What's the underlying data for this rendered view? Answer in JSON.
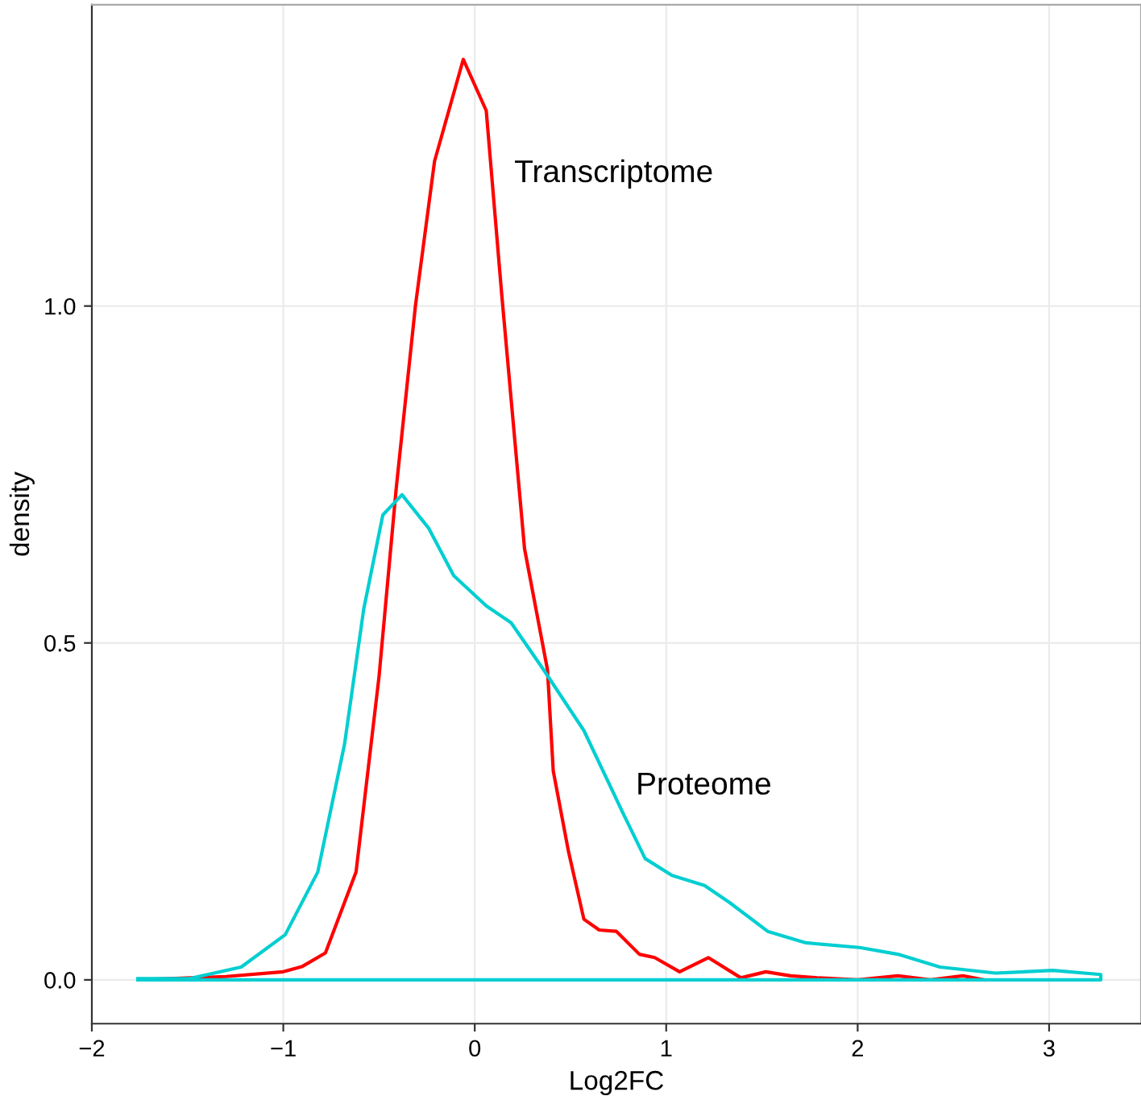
{
  "chart_data": {
    "type": "line",
    "xlabel": "Log2FC",
    "ylabel": "density",
    "xlim": [
      -2.0,
      3.48
    ],
    "ylim": [
      -0.065,
      1.447
    ],
    "xticks": [
      {
        "value": -2,
        "label": "−2"
      },
      {
        "value": -1,
        "label": "−1"
      },
      0,
      1,
      2,
      3
    ],
    "yticks": [
      {
        "value": 0,
        "label": "0.0"
      },
      {
        "value": 0.5,
        "label": "0.5"
      },
      {
        "value": 1,
        "label": "1.0"
      }
    ],
    "grid": true,
    "legend": false,
    "series": [
      {
        "color": "#ff0000",
        "x": [
          -1.75,
          -1.3,
          -1.0,
          -0.9,
          -0.78,
          -0.62,
          -0.5,
          -0.41,
          -0.31,
          -0.21,
          -0.06,
          0.06,
          0.14,
          0.26,
          0.38,
          0.41,
          0.49,
          0.57,
          0.65,
          0.74,
          0.86,
          0.94,
          1.07,
          1.22,
          1.39,
          1.52,
          1.65,
          1.79,
          2.0,
          2.21,
          2.38,
          2.55,
          2.66
        ],
        "values": [
          0.0,
          0.005,
          0.012,
          0.02,
          0.04,
          0.16,
          0.45,
          0.73,
          1.0,
          1.215,
          1.366,
          1.29,
          1.02,
          0.64,
          0.46,
          0.31,
          0.19,
          0.09,
          0.074,
          0.072,
          0.038,
          0.033,
          0.012,
          0.033,
          0.003,
          0.012,
          0.006,
          0.003,
          0.0,
          0.006,
          0.0,
          0.006,
          0.0
        ]
      },
      {
        "color": "#00ced1",
        "x": [
          -1.76,
          -1.49,
          -1.22,
          -0.99,
          -0.82,
          -0.68,
          -0.58,
          -0.48,
          -0.38,
          -0.24,
          -0.11,
          0.06,
          0.19,
          0.36,
          0.57,
          0.77,
          0.89,
          1.03,
          1.2,
          1.33,
          1.53,
          1.73,
          2.01,
          2.21,
          2.43,
          2.72,
          3.02,
          3.27,
          3.27,
          -1.76
        ],
        "values": [
          0.002,
          0.002,
          0.019,
          0.067,
          0.16,
          0.35,
          0.55,
          0.69,
          0.72,
          0.67,
          0.6,
          0.555,
          0.53,
          0.46,
          0.37,
          0.25,
          0.18,
          0.155,
          0.14,
          0.115,
          0.072,
          0.055,
          0.048,
          0.038,
          0.019,
          0.01,
          0.014,
          0.008,
          0.0,
          0.0
        ]
      }
    ],
    "annotations": [
      "Transcriptome",
      "Proteome"
    ]
  }
}
